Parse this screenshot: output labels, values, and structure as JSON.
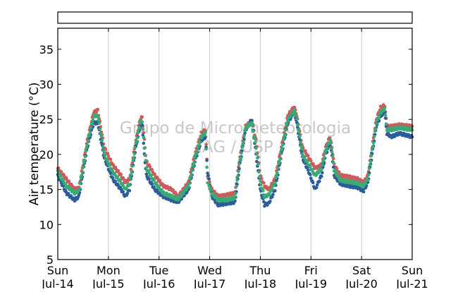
{
  "chart_data": {
    "type": "scatter",
    "ylabel": "Air temperature (°C)",
    "xlabel": "",
    "title": "",
    "ylim": [
      5,
      38
    ],
    "xlim": [
      "2019-07-14 00:00",
      "2019-07-21 00:00"
    ],
    "yticks": [
      5,
      10,
      15,
      20,
      25,
      30,
      35
    ],
    "xticks": [
      {
        "day": "Sun",
        "date": "Jul-14"
      },
      {
        "day": "Mon",
        "date": "Jul-15"
      },
      {
        "day": "Tue",
        "date": "Jul-16"
      },
      {
        "day": "Wed",
        "date": "Jul-17"
      },
      {
        "day": "Thu",
        "date": "Jul-18"
      },
      {
        "day": "Fri",
        "date": "Jul-19"
      },
      {
        "day": "Sat",
        "date": "Jul-20"
      },
      {
        "day": "Sun",
        "date": "Jul-21"
      }
    ],
    "grid": "vertical",
    "legend": "empty box above plot",
    "watermark": [
      "Grupo de Micrometeorologia",
      "IAG / USP"
    ],
    "x_unit": "hours since Sun Jul-14 00:00",
    "series": [
      {
        "color": "#cc5c5c",
        "points": [
          [
            0,
            18
          ],
          [
            4,
            16.5
          ],
          [
            8,
            15
          ],
          [
            10,
            15.2
          ],
          [
            14,
            22
          ],
          [
            17,
            26
          ],
          [
            19,
            26.3
          ],
          [
            22,
            21
          ],
          [
            26,
            18.5
          ],
          [
            30,
            17
          ],
          [
            32,
            16
          ],
          [
            34,
            16.5
          ],
          [
            37,
            22
          ],
          [
            39,
            25
          ],
          [
            40,
            25.3
          ],
          [
            41,
            22
          ],
          [
            42,
            19
          ],
          [
            46,
            17
          ],
          [
            50,
            15.5
          ],
          [
            54,
            15
          ],
          [
            57,
            14
          ],
          [
            62,
            16
          ],
          [
            65,
            20
          ],
          [
            68,
            23
          ],
          [
            70,
            23.5
          ],
          [
            71,
            17
          ],
          [
            73,
            15
          ],
          [
            76,
            14
          ],
          [
            80,
            14.2
          ],
          [
            84,
            14.5
          ],
          [
            86,
            19
          ],
          [
            89,
            24
          ],
          [
            92,
            24.8
          ],
          [
            94,
            22
          ],
          [
            96,
            17
          ],
          [
            98,
            15.5
          ],
          [
            100,
            15
          ],
          [
            103,
            16.5
          ],
          [
            106,
            21
          ],
          [
            109,
            25.5
          ],
          [
            112,
            26.8
          ],
          [
            113,
            26
          ],
          [
            116,
            21
          ],
          [
            119,
            19.5
          ],
          [
            122,
            18
          ],
          [
            125,
            18.5
          ],
          [
            127,
            21
          ],
          [
            129,
            22.5
          ],
          [
            130,
            21
          ],
          [
            131,
            18.5
          ],
          [
            134,
            17
          ],
          [
            138,
            16.8
          ],
          [
            142,
            16.5
          ],
          [
            145,
            16
          ],
          [
            147,
            17
          ],
          [
            149,
            21
          ],
          [
            151,
            25
          ],
          [
            153,
            26.7
          ],
          [
            155,
            27
          ],
          [
            156,
            24
          ],
          [
            158,
            24
          ],
          [
            162,
            24.2
          ],
          [
            168,
            24
          ]
        ]
      },
      {
        "color": "#2c5d9a",
        "points": [
          [
            0,
            17
          ],
          [
            4,
            14.5
          ],
          [
            8,
            13.5
          ],
          [
            10,
            14
          ],
          [
            14,
            21
          ],
          [
            17,
            24.5
          ],
          [
            19,
            24.5
          ],
          [
            22,
            19.5
          ],
          [
            26,
            16.5
          ],
          [
            30,
            15
          ],
          [
            32,
            14
          ],
          [
            34,
            15
          ],
          [
            37,
            21
          ],
          [
            39,
            24
          ],
          [
            40,
            24.3
          ],
          [
            41,
            20
          ],
          [
            42,
            17
          ],
          [
            46,
            15
          ],
          [
            50,
            14
          ],
          [
            54,
            13.5
          ],
          [
            57,
            13.2
          ],
          [
            62,
            15
          ],
          [
            65,
            19
          ],
          [
            68,
            22
          ],
          [
            70,
            22.5
          ],
          [
            71,
            17.5
          ],
          [
            73,
            14
          ],
          [
            76,
            12.8
          ],
          [
            80,
            13
          ],
          [
            84,
            13.2
          ],
          [
            86,
            18
          ],
          [
            89,
            23.5
          ],
          [
            92,
            25
          ],
          [
            94,
            20
          ],
          [
            96,
            15
          ],
          [
            98,
            12.8
          ],
          [
            100,
            13
          ],
          [
            103,
            15
          ],
          [
            106,
            20
          ],
          [
            109,
            24.5
          ],
          [
            112,
            26
          ],
          [
            113,
            25
          ],
          [
            116,
            19.5
          ],
          [
            119,
            17.5
          ],
          [
            122,
            15
          ],
          [
            125,
            17
          ],
          [
            127,
            20
          ],
          [
            129,
            21.5
          ],
          [
            130,
            20
          ],
          [
            131,
            17
          ],
          [
            134,
            15.8
          ],
          [
            138,
            15.5
          ],
          [
            142,
            15.3
          ],
          [
            145,
            14.8
          ],
          [
            147,
            16
          ],
          [
            149,
            20
          ],
          [
            151,
            24
          ],
          [
            153,
            25.5
          ],
          [
            155,
            26
          ],
          [
            156,
            23
          ],
          [
            158,
            22.5
          ],
          [
            162,
            23
          ],
          [
            168,
            22.5
          ]
        ]
      },
      {
        "color": "#3aaa74",
        "points": [
          [
            0,
            17.5
          ],
          [
            4,
            15.5
          ],
          [
            8,
            14.5
          ],
          [
            10,
            14.8
          ],
          [
            14,
            21.5
          ],
          [
            17,
            25.5
          ],
          [
            19,
            25.5
          ],
          [
            22,
            20
          ],
          [
            26,
            17.5
          ],
          [
            30,
            16
          ],
          [
            32,
            15
          ],
          [
            34,
            15.8
          ],
          [
            37,
            21.5
          ],
          [
            39,
            24.5
          ],
          [
            40,
            24.8
          ],
          [
            41,
            21
          ],
          [
            42,
            18
          ],
          [
            46,
            16
          ],
          [
            50,
            14.5
          ],
          [
            54,
            14
          ],
          [
            57,
            13.6
          ],
          [
            62,
            15.5
          ],
          [
            65,
            19.5
          ],
          [
            68,
            22.5
          ],
          [
            70,
            23
          ],
          [
            71,
            16
          ],
          [
            73,
            14.5
          ],
          [
            76,
            13.5
          ],
          [
            80,
            13.5
          ],
          [
            84,
            13.8
          ],
          [
            86,
            18.5
          ],
          [
            89,
            23.8
          ],
          [
            92,
            24.5
          ],
          [
            94,
            21
          ],
          [
            96,
            16
          ],
          [
            98,
            14
          ],
          [
            100,
            14.2
          ],
          [
            103,
            16
          ],
          [
            106,
            20.5
          ],
          [
            109,
            25
          ],
          [
            112,
            26.2
          ],
          [
            113,
            25.5
          ],
          [
            116,
            20
          ],
          [
            119,
            18.5
          ],
          [
            122,
            17
          ],
          [
            125,
            18
          ],
          [
            127,
            20.5
          ],
          [
            129,
            22
          ],
          [
            130,
            20.5
          ],
          [
            131,
            17.8
          ],
          [
            134,
            16.3
          ],
          [
            138,
            16.1
          ],
          [
            142,
            15.9
          ],
          [
            145,
            15.5
          ],
          [
            147,
            16.5
          ],
          [
            149,
            20.5
          ],
          [
            151,
            24.5
          ],
          [
            153,
            26
          ],
          [
            155,
            26.5
          ],
          [
            156,
            23.5
          ],
          [
            158,
            23.5
          ],
          [
            162,
            23.8
          ],
          [
            168,
            23.5
          ]
        ]
      }
    ]
  }
}
